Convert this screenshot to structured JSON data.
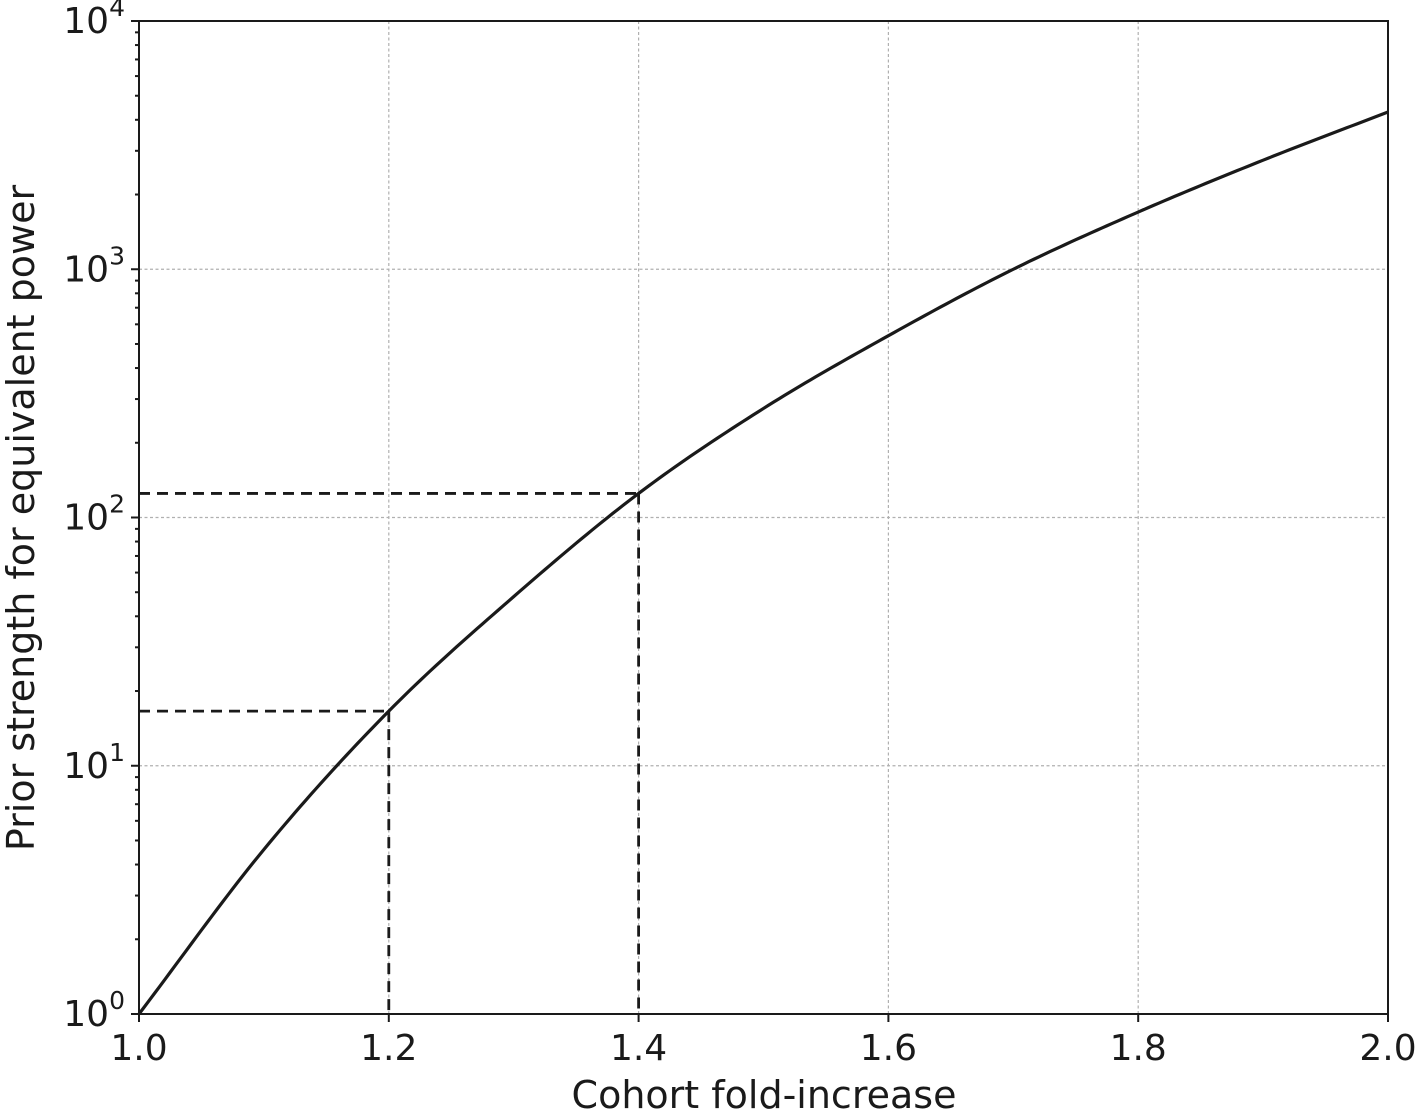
{
  "chart_data": {
    "type": "line",
    "title": "",
    "xlabel": "Cohort fold-increase",
    "ylabel": "Prior strength for equivalent power",
    "xlim": [
      1.0,
      2.0
    ],
    "ylim": [
      1,
      10000
    ],
    "yscale": "log",
    "grid": true,
    "x_ticks": [
      "1.0",
      "1.2",
      "1.4",
      "1.6",
      "1.8",
      "2.0"
    ],
    "y_ticks": [
      {
        "base": "10",
        "exp": "0"
      },
      {
        "base": "10",
        "exp": "1"
      },
      {
        "base": "10",
        "exp": "2"
      },
      {
        "base": "10",
        "exp": "3"
      },
      {
        "base": "10",
        "exp": "4"
      }
    ],
    "series": [
      {
        "color": "#1a1a1a",
        "style": "solid",
        "x": [
          1.0,
          1.1,
          1.2,
          1.3,
          1.4,
          1.5,
          1.6,
          1.7,
          1.8,
          1.9,
          2.0
        ],
        "y": [
          1.0,
          4.6,
          16.6,
          48,
          125,
          275,
          540,
          1000,
          1700,
          2750,
          4300
        ]
      }
    ],
    "reference_lines": [
      {
        "style": "dashed",
        "x": 1.2,
        "y": 16.6
      },
      {
        "style": "dashed",
        "x": 1.4,
        "y": 125
      }
    ]
  }
}
